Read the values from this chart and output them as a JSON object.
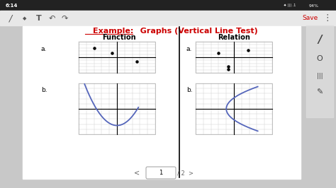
{
  "title_example": "Example:",
  "title_rest": "  Graphs (Vertical Line Test)",
  "col1_header": "Function",
  "col2_header": "Relation",
  "bg_color": "#c8c8c8",
  "paper_color": "#ffffff",
  "phone_bar_color": "#222222",
  "title_color": "#cc0000",
  "grid_color": "#cccccc",
  "axis_color": "#000000",
  "curve_color": "#5566bb",
  "dot_color": "#000000",
  "phone_time": "6:14",
  "phone_battery": "94%",
  "toolbar_color": "#e8e8e8",
  "divider_color": "#000000",
  "right_panel_color": "#dddddd"
}
